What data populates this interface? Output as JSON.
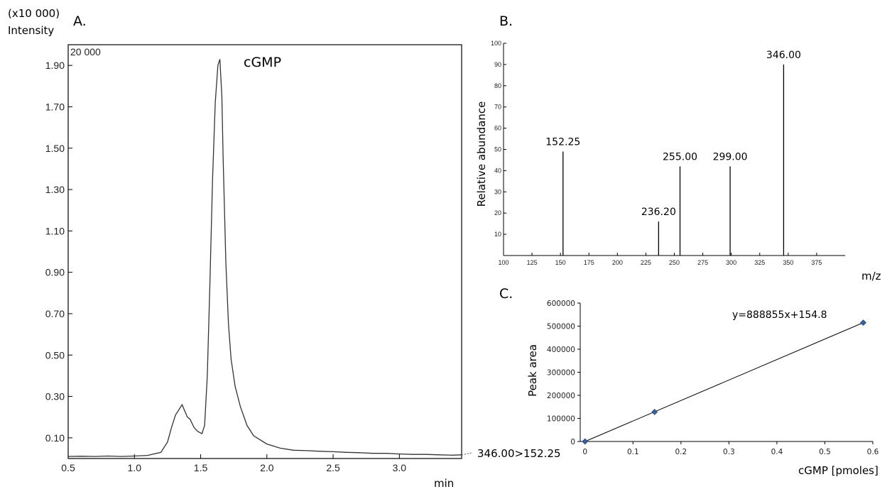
{
  "chart_data": [
    {
      "id": "A",
      "type": "line",
      "panel_label": "A.",
      "y_multiplier_label": "(x10 000)",
      "ylabel": "Intensity",
      "scale_label": "20 000",
      "xlabel": "min",
      "peak_label": "cGMP",
      "transition_label": "346.00>152.25",
      "xlim": [
        0.5,
        3.47
      ],
      "ylim": [
        0.0,
        2.0
      ],
      "xticks": [
        "0.5",
        "1.0",
        "1.5",
        "2.0",
        "2.5",
        "3.0"
      ],
      "yticks": [
        "0.10",
        "0.30",
        "0.50",
        "0.70",
        "0.90",
        "1.10",
        "1.30",
        "1.50",
        "1.70",
        "1.90"
      ],
      "x": [
        0.5,
        0.6,
        0.7,
        0.8,
        0.9,
        1.0,
        1.1,
        1.2,
        1.25,
        1.28,
        1.31,
        1.34,
        1.36,
        1.38,
        1.4,
        1.42,
        1.45,
        1.48,
        1.51,
        1.53,
        1.55,
        1.57,
        1.59,
        1.61,
        1.63,
        1.645,
        1.66,
        1.67,
        1.69,
        1.71,
        1.73,
        1.76,
        1.8,
        1.85,
        1.9,
        2.0,
        2.1,
        2.2,
        2.3,
        2.4,
        2.5,
        2.6,
        2.7,
        2.8,
        2.9,
        3.0,
        3.1,
        3.2,
        3.3,
        3.4,
        3.47
      ],
      "y": [
        0.01,
        0.011,
        0.01,
        0.012,
        0.01,
        0.012,
        0.015,
        0.03,
        0.08,
        0.15,
        0.21,
        0.24,
        0.26,
        0.23,
        0.2,
        0.19,
        0.15,
        0.13,
        0.12,
        0.16,
        0.4,
        0.85,
        1.35,
        1.72,
        1.9,
        1.93,
        1.75,
        1.45,
        0.95,
        0.65,
        0.48,
        0.35,
        0.25,
        0.16,
        0.11,
        0.07,
        0.05,
        0.04,
        0.038,
        0.035,
        0.033,
        0.03,
        0.028,
        0.025,
        0.025,
        0.022,
        0.02,
        0.02,
        0.018,
        0.016,
        0.018
      ]
    },
    {
      "id": "B",
      "type": "bar",
      "panel_label": "B.",
      "xlabel": "m/z",
      "ylabel": "Relative abundance",
      "xlim": [
        100,
        400
      ],
      "ylim": [
        0,
        100
      ],
      "xticks": [
        "100",
        "125",
        "150",
        "175",
        "200",
        "225",
        "250",
        "275",
        "300",
        "325",
        "350",
        "375"
      ],
      "yticks": [
        "10",
        "20",
        "30",
        "40",
        "50",
        "60",
        "70",
        "80",
        "90",
        "100"
      ],
      "peaks_mz": [
        152.25,
        236.2,
        255.0,
        299.0,
        346.0
      ],
      "peaks_abundance": [
        49,
        16,
        42,
        42,
        90
      ],
      "peak_labels": [
        "152.25",
        "236.20",
        "255.00",
        "299.00",
        "346.00"
      ]
    },
    {
      "id": "C",
      "type": "scatter",
      "panel_label": "C.",
      "xlabel": "cGMP [pmoles]",
      "ylabel": "Peak area",
      "equation": "y=888855x+154.8",
      "xlim": [
        -0.01,
        0.6
      ],
      "ylim": [
        0,
        600000
      ],
      "xticks": [
        "0",
        "0.1",
        "0.2",
        "0.3",
        "0.4",
        "0.5",
        "0.6"
      ],
      "yticks": [
        "0",
        "100000",
        "200000",
        "300000",
        "400000",
        "500000",
        "600000"
      ],
      "x": [
        0,
        0.145,
        0.58
      ],
      "y": [
        0,
        128000,
        515000
      ],
      "marker_color": "#3a5f9a"
    }
  ]
}
